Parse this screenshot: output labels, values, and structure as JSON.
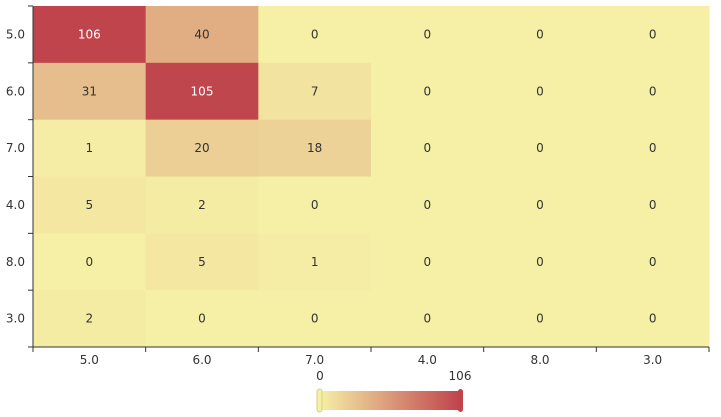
{
  "chart_data": {
    "type": "heatmap",
    "title": "",
    "xlabel": "",
    "ylabel": "",
    "x_categories": [
      "5.0",
      "6.0",
      "7.0",
      "4.0",
      "8.0",
      "3.0"
    ],
    "y_categories": [
      "5.0",
      "6.0",
      "7.0",
      "4.0",
      "8.0",
      "3.0"
    ],
    "values": [
      [
        106,
        40,
        0,
        0,
        0,
        0
      ],
      [
        31,
        105,
        7,
        0,
        0,
        0
      ],
      [
        1,
        20,
        18,
        0,
        0,
        0
      ],
      [
        5,
        2,
        0,
        0,
        0,
        0
      ],
      [
        0,
        5,
        1,
        0,
        0,
        0
      ],
      [
        2,
        0,
        0,
        0,
        0,
        0
      ]
    ],
    "visual_map": {
      "min": 0,
      "max": 106,
      "min_label": "0",
      "max_label": "106",
      "color_low": "#f6efa6",
      "color_high": "#bf444c"
    },
    "grid": false,
    "legend_position": "bottom-center"
  }
}
